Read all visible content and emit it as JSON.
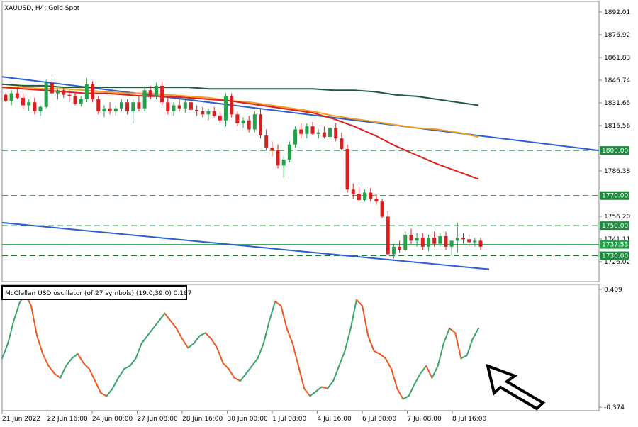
{
  "header": {
    "symbol_label": "XAUUSD, H4:  Gold Spot"
  },
  "indicator": {
    "label": "McClellan USD oscillator (of 27 symbols) (19.0,39.0) 0.187"
  },
  "colors": {
    "bull": "#26a04a",
    "bear": "#d9201e",
    "ma_fast": "#e0201b",
    "ma_mid": "#f0a020",
    "ma_slow": "#1f5a3a",
    "channel": "#2a5fcf",
    "level_line": "#1f7a36",
    "level_tag": "#1e8a3e",
    "current_tag": "#27a04b",
    "osc_up": "#3aa56a",
    "osc_down": "#f0561e"
  },
  "chart_data": [
    {
      "type": "candlestick",
      "title": "XAUUSD, H4:  Gold Spot",
      "price_axis_ticks": [
        "1892.01",
        "1876.92",
        "1861.83",
        "1846.74",
        "1831.65",
        "1816.56",
        "1786.38",
        "1756.20",
        "1741.11",
        "1726.02"
      ],
      "price_range": [
        1720,
        1900
      ],
      "x_tick_labels": [
        "21 Jun 2022",
        "22 Jun 16:00",
        "24 Jun 00:00",
        "27 Jun 08:00",
        "28 Jun 16:00",
        "30 Jun 00:00",
        "1 Jul 08:00",
        "4 Jul 16:00",
        "6 Jul 00:00",
        "7 Jul 08:00",
        "8 Jul 16:00"
      ],
      "horizontal_levels": [
        {
          "label": "1800.00",
          "value": 1800.0,
          "style": "dashed"
        },
        {
          "label": "1770.00",
          "value": 1770.0,
          "style": "dashed"
        },
        {
          "label": "1750.00",
          "value": 1750.0,
          "style": "dashed"
        },
        {
          "label": "1730.00",
          "value": 1730.0,
          "style": "dashed"
        }
      ],
      "current_price": {
        "label": "1737.53",
        "value": 1737.53
      },
      "candles": [
        [
          1837,
          1838,
          1832,
          1833
        ],
        [
          1833,
          1840,
          1830,
          1838
        ],
        [
          1838,
          1842,
          1834,
          1835
        ],
        [
          1835,
          1838,
          1828,
          1830
        ],
        [
          1830,
          1834,
          1826,
          1832
        ],
        [
          1832,
          1835,
          1824,
          1826
        ],
        [
          1826,
          1830,
          1823,
          1829
        ],
        [
          1829,
          1847,
          1828,
          1845
        ],
        [
          1845,
          1848,
          1836,
          1838
        ],
        [
          1838,
          1841,
          1834,
          1840
        ],
        [
          1840,
          1842,
          1835,
          1837
        ],
        [
          1837,
          1840,
          1832,
          1836
        ],
        [
          1836,
          1838,
          1830,
          1831
        ],
        [
          1831,
          1836,
          1829,
          1834
        ],
        [
          1834,
          1848,
          1832,
          1844
        ],
        [
          1844,
          1846,
          1832,
          1834
        ],
        [
          1834,
          1836,
          1824,
          1826
        ],
        [
          1826,
          1830,
          1822,
          1828
        ],
        [
          1828,
          1832,
          1824,
          1826
        ],
        [
          1826,
          1830,
          1823,
          1828
        ],
        [
          1828,
          1834,
          1826,
          1832
        ],
        [
          1832,
          1834,
          1824,
          1826
        ],
        [
          1826,
          1834,
          1818,
          1832
        ],
        [
          1832,
          1836,
          1826,
          1828
        ],
        [
          1828,
          1842,
          1826,
          1840
        ],
        [
          1840,
          1843,
          1834,
          1836
        ],
        [
          1836,
          1845,
          1834,
          1843
        ],
        [
          1843,
          1846,
          1830,
          1832
        ],
        [
          1832,
          1836,
          1824,
          1826
        ],
        [
          1826,
          1832,
          1823,
          1830
        ],
        [
          1830,
          1834,
          1826,
          1828
        ],
        [
          1828,
          1834,
          1825,
          1832
        ],
        [
          1832,
          1834,
          1826,
          1827
        ],
        [
          1827,
          1830,
          1823,
          1826
        ],
        [
          1826,
          1829,
          1822,
          1824
        ],
        [
          1824,
          1828,
          1820,
          1826
        ],
        [
          1826,
          1829,
          1822,
          1823
        ],
        [
          1823,
          1826,
          1818,
          1820
        ],
        [
          1820,
          1838,
          1816,
          1836
        ],
        [
          1836,
          1838,
          1822,
          1824
        ],
        [
          1824,
          1826,
          1816,
          1818
        ],
        [
          1818,
          1822,
          1815,
          1820
        ],
        [
          1820,
          1823,
          1812,
          1814
        ],
        [
          1814,
          1826,
          1812,
          1824
        ],
        [
          1824,
          1828,
          1808,
          1810
        ],
        [
          1810,
          1814,
          1800,
          1802
        ],
        [
          1802,
          1806,
          1796,
          1800
        ],
        [
          1800,
          1804,
          1788,
          1790
        ],
        [
          1790,
          1796,
          1782,
          1794
        ],
        [
          1794,
          1806,
          1792,
          1804
        ],
        [
          1804,
          1816,
          1802,
          1814
        ],
        [
          1814,
          1818,
          1808,
          1811
        ],
        [
          1811,
          1818,
          1808,
          1816
        ],
        [
          1816,
          1819,
          1810,
          1811
        ],
        [
          1811,
          1814,
          1808,
          1812
        ],
        [
          1812,
          1816,
          1808,
          1809
        ],
        [
          1809,
          1816,
          1808,
          1815
        ],
        [
          1815,
          1818,
          1806,
          1808
        ],
        [
          1808,
          1812,
          1800,
          1801
        ],
        [
          1801,
          1804,
          1772,
          1774
        ],
        [
          1774,
          1778,
          1768,
          1771
        ],
        [
          1771,
          1776,
          1766,
          1767
        ],
        [
          1767,
          1774,
          1766,
          1772
        ],
        [
          1772,
          1775,
          1766,
          1768
        ],
        [
          1768,
          1771,
          1764,
          1766
        ],
        [
          1766,
          1768,
          1755,
          1756
        ],
        [
          1756,
          1760,
          1730,
          1731
        ],
        [
          1731,
          1738,
          1728,
          1736
        ],
        [
          1736,
          1740,
          1732,
          1734
        ],
        [
          1734,
          1746,
          1733,
          1744
        ],
        [
          1744,
          1748,
          1738,
          1740
        ],
        [
          1740,
          1745,
          1736,
          1742
        ],
        [
          1742,
          1745,
          1734,
          1736
        ],
        [
          1736,
          1744,
          1733,
          1742
        ],
        [
          1742,
          1746,
          1736,
          1738
        ],
        [
          1738,
          1745,
          1736,
          1743
        ],
        [
          1743,
          1746,
          1734,
          1736
        ],
        [
          1736,
          1740,
          1730,
          1740
        ],
        [
          1740,
          1752,
          1732,
          1742
        ],
        [
          1742,
          1745,
          1738,
          1741
        ],
        [
          1741,
          1744,
          1736,
          1739
        ],
        [
          1739,
          1742,
          1736,
          1740
        ],
        [
          1740,
          1742,
          1734,
          1736
        ]
      ],
      "moving_averages": {
        "fast": [
          1842,
          1841,
          1840,
          1839,
          1838,
          1838,
          1837,
          1836,
          1836,
          1835,
          1834,
          1833,
          1831,
          1829,
          1827,
          1825,
          1821,
          1816,
          1810,
          1803,
          1797,
          1791,
          1786,
          1781
        ],
        "mid": [
          1842,
          1842,
          1841,
          1841,
          1840,
          1839,
          1838,
          1838,
          1837,
          1836,
          1835,
          1833,
          1832,
          1830,
          1828,
          1826,
          1823,
          1821,
          1819,
          1817,
          1815,
          1814,
          1812,
          1809
        ],
        "slow": [
          1844,
          1843,
          1843,
          1842,
          1842,
          1842,
          1842,
          1842,
          1842,
          1842,
          1841,
          1841,
          1841,
          1841,
          1841,
          1841,
          1840,
          1840,
          1839,
          1837,
          1836,
          1834,
          1832,
          1830
        ]
      },
      "channel_upper": [
        1849,
        1800
      ],
      "channel_lower": [
        1752,
        1721
      ]
    },
    {
      "type": "line",
      "title": "McClellan USD oscillator (of 27 symbols) (19.0,39.0) 0.187",
      "y_axis_ticks": [
        "0.409",
        "-0.374"
      ],
      "ylim": [
        -0.374,
        0.409
      ],
      "values": [
        -0.05,
        0.05,
        0.2,
        0.32,
        0.38,
        0.3,
        0.1,
        -0.02,
        -0.1,
        -0.15,
        -0.18,
        -0.1,
        -0.05,
        -0.02,
        -0.08,
        -0.12,
        -0.2,
        -0.28,
        -0.3,
        -0.25,
        -0.18,
        -0.12,
        -0.1,
        -0.05,
        0.05,
        0.1,
        0.15,
        0.2,
        0.25,
        0.2,
        0.15,
        0.08,
        0.02,
        0.05,
        0.1,
        0.12,
        0.08,
        0.02,
        -0.08,
        -0.12,
        -0.18,
        -0.2,
        -0.15,
        -0.1,
        -0.05,
        0.05,
        0.2,
        0.33,
        0.3,
        0.15,
        0.05,
        -0.1,
        -0.25,
        -0.3,
        -0.27,
        -0.24,
        -0.25,
        -0.2,
        -0.1,
        0.0,
        0.15,
        0.34,
        0.3,
        0.1,
        0.0,
        -0.02,
        -0.05,
        -0.12,
        -0.25,
        -0.32,
        -0.3,
        -0.22,
        -0.15,
        -0.1,
        -0.18,
        -0.1,
        0.05,
        0.15,
        0.12,
        -0.05,
        -0.03,
        0.08,
        0.15
      ]
    }
  ]
}
